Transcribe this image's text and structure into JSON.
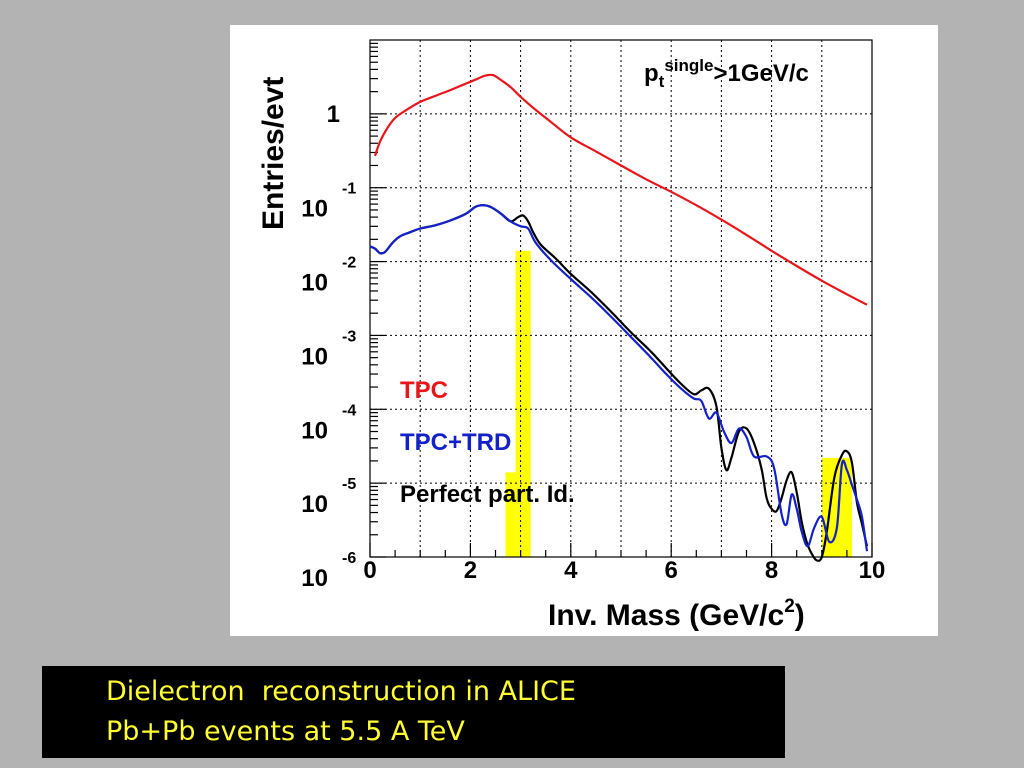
{
  "caption": {
    "line1": "Dielectron  reconstruction in ALICE",
    "line2": "Pb+Pb events at 5.5 A TeV"
  },
  "chart_data": {
    "type": "line",
    "title": "",
    "xlabel": "Inv. Mass (GeV/c",
    "xlabel_sup": "2",
    "xlabel_close": ")",
    "ylabel": "Entries/evt",
    "annotation": {
      "p": "p",
      "sub": "t",
      "sup": "single",
      "rest": ">1GeV/c"
    },
    "y_scale": "log",
    "xlim": [
      0,
      10
    ],
    "ylim": [
      1e-06,
      10
    ],
    "grid": true,
    "x_ticks": [
      "0",
      "2",
      "4",
      "6",
      "8",
      "10"
    ],
    "y_ticks": [
      {
        "base": "1",
        "exp": ""
      },
      {
        "base": "10",
        "exp": "-1"
      },
      {
        "base": "10",
        "exp": "-2"
      },
      {
        "base": "10",
        "exp": "-3"
      },
      {
        "base": "10",
        "exp": "-4"
      },
      {
        "base": "10",
        "exp": "-5"
      },
      {
        "base": "10",
        "exp": "-6"
      }
    ],
    "legend_position": "middle-left",
    "legend": [
      {
        "label": "TPC",
        "color": "#e8161b"
      },
      {
        "label": "TPC+TRD",
        "color": "#1420c8"
      },
      {
        "label": "Perfect part. Id.",
        "color": "#000000"
      }
    ],
    "series": [
      {
        "name": "TPC",
        "color": "#e8161b",
        "x": [
          0.1,
          0.2,
          0.35,
          0.5,
          0.7,
          1.0,
          1.3,
          1.6,
          1.9,
          2.1,
          2.3,
          2.45,
          2.6,
          2.8,
          3.0,
          3.3,
          3.6,
          4.0,
          4.5,
          5.0,
          5.5,
          6.0,
          6.5,
          7.0,
          7.5,
          8.0,
          8.5,
          9.0,
          9.5,
          9.9
        ],
        "y": [
          0.27,
          0.42,
          0.65,
          0.88,
          1.1,
          1.45,
          1.75,
          2.1,
          2.55,
          2.9,
          3.3,
          3.35,
          2.9,
          2.3,
          1.7,
          1.13,
          0.78,
          0.48,
          0.31,
          0.2,
          0.13,
          0.088,
          0.058,
          0.037,
          0.023,
          0.014,
          0.0087,
          0.0055,
          0.0036,
          0.0026
        ]
      },
      {
        "name": "TPC+TRD",
        "color": "#1420c8",
        "x": [
          0.0,
          0.1,
          0.2,
          0.3,
          0.45,
          0.6,
          0.8,
          1.0,
          1.3,
          1.6,
          1.9,
          2.1,
          2.25,
          2.4,
          2.6,
          2.8,
          3.0,
          3.15,
          3.3,
          3.6,
          4.0,
          4.4,
          4.8,
          5.2,
          5.6,
          5.9,
          6.2,
          6.45,
          6.6,
          6.75,
          6.9,
          7.05,
          7.2,
          7.35,
          7.5,
          7.65,
          7.9,
          8.05,
          8.2,
          8.3,
          8.4,
          8.5,
          8.6,
          8.72,
          8.85,
          9.0,
          9.15,
          9.3,
          9.4,
          9.5,
          9.6,
          9.7,
          9.8,
          9.9
        ],
        "y": [
          0.016,
          0.015,
          0.013,
          0.0135,
          0.018,
          0.022,
          0.025,
          0.028,
          0.031,
          0.036,
          0.044,
          0.055,
          0.058,
          0.055,
          0.045,
          0.035,
          0.03,
          0.028,
          0.018,
          0.0105,
          0.0058,
          0.0033,
          0.0018,
          0.00095,
          0.0005,
          0.0003,
          0.00019,
          0.00014,
          0.00013,
          7.5e-05,
          9e-05,
          5e-05,
          3.5e-05,
          5.5e-05,
          4.2e-05,
          2.3e-05,
          2.3e-05,
          1.6e-05,
          3.8e-06,
          2.8e-06,
          7e-06,
          4.5e-06,
          2.2e-06,
          1.4e-06,
          2.5e-06,
          3.5e-06,
          1.6e-06,
          2.5e-06,
          1.8e-05,
          1.5e-05,
          9.5e-06,
          6e-06,
          3.5e-06,
          1.2e-06
        ]
      },
      {
        "name": "Perfect part. Id.",
        "color": "#000000",
        "x": [
          0.0,
          0.1,
          0.2,
          0.3,
          0.45,
          0.6,
          0.8,
          1.0,
          1.3,
          1.6,
          1.9,
          2.1,
          2.25,
          2.4,
          2.6,
          2.8,
          2.95,
          3.05,
          3.15,
          3.25,
          3.4,
          3.7,
          4.0,
          4.4,
          4.8,
          5.2,
          5.6,
          5.9,
          6.2,
          6.45,
          6.6,
          6.75,
          6.9,
          7.0,
          7.1,
          7.2,
          7.35,
          7.5,
          7.65,
          7.8,
          7.9,
          8.0,
          8.1,
          8.2,
          8.3,
          8.4,
          8.5,
          8.6,
          8.7,
          8.8,
          8.9,
          9.0,
          9.1,
          9.25,
          9.4,
          9.5,
          9.6,
          9.7,
          9.8,
          9.9
        ],
        "y": [
          0.016,
          0.015,
          0.013,
          0.0135,
          0.018,
          0.022,
          0.025,
          0.028,
          0.031,
          0.036,
          0.044,
          0.055,
          0.058,
          0.055,
          0.045,
          0.035,
          0.04,
          0.042,
          0.035,
          0.025,
          0.017,
          0.011,
          0.0068,
          0.0039,
          0.0021,
          0.0011,
          0.0006,
          0.00036,
          0.00022,
          0.00016,
          0.00018,
          0.00019,
          0.00011,
          3e-05,
          1.5e-05,
          2.2e-05,
          5e-05,
          5.5e-05,
          3.5e-05,
          1.55e-05,
          6.3e-06,
          4.5e-06,
          4.2e-06,
          6.3e-06,
          1.1e-05,
          1.4e-05,
          7.5e-06,
          3e-06,
          1.6e-06,
          1.1e-06,
          9e-07,
          1e-06,
          2.2e-06,
          1.2e-05,
          2.4e-05,
          2.7e-05,
          1.9e-05,
          5.5e-06,
          2.8e-06,
          1.4e-06
        ]
      }
    ],
    "highlight_bands": [
      {
        "x0": 2.7,
        "x1": 2.9,
        "y_top": 1.4e-05,
        "color": "#ffff00"
      },
      {
        "x0": 2.9,
        "x1": 3.2,
        "y_top": 0.014,
        "color": "#ffff00"
      },
      {
        "x0": 9.0,
        "x1": 9.6,
        "y_top": 2.2e-05,
        "color": "#ffff00"
      }
    ]
  }
}
